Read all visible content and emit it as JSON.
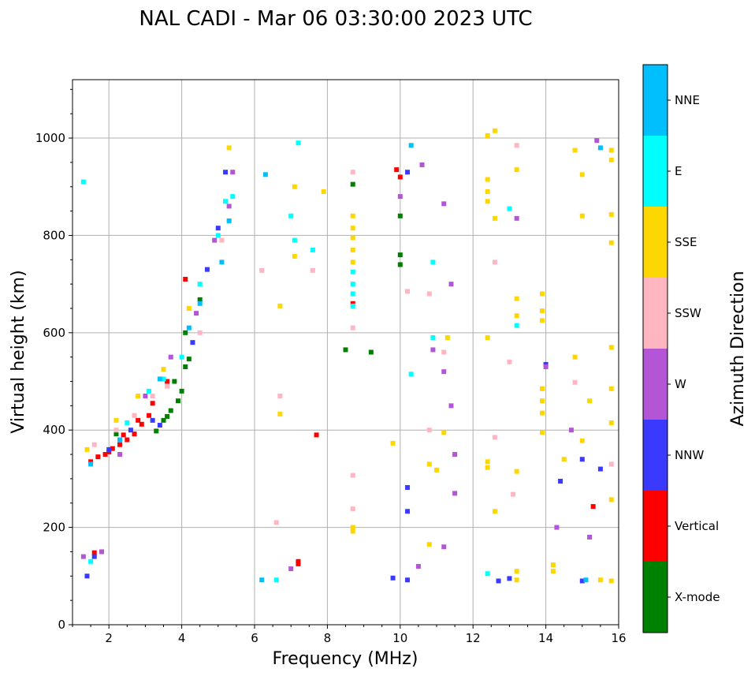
{
  "chart_data": {
    "type": "scatter",
    "title": "NAL CADI - Mar 06 03:30:00 2023 UTC",
    "xlabel": "Frequency (MHz)",
    "ylabel": "Virtual height (km)",
    "xlim": [
      1,
      16
    ],
    "ylim": [
      0,
      1120
    ],
    "xticks": [
      2,
      4,
      6,
      8,
      10,
      12,
      14,
      16
    ],
    "yticks": [
      0,
      200,
      400,
      600,
      800,
      1000
    ],
    "grid": true,
    "colorbar": {
      "label": "Azimuth Direction",
      "categories": [
        {
          "name": "X-mode",
          "color": "#008000"
        },
        {
          "name": "Vertical",
          "color": "#ff0000"
        },
        {
          "name": "NNW",
          "color": "#3a3aff"
        },
        {
          "name": "W",
          "color": "#b455d6"
        },
        {
          "name": "SSW",
          "color": "#ffb6c1"
        },
        {
          "name": "SSE",
          "color": "#ffd700"
        },
        {
          "name": "E",
          "color": "#00ffff"
        },
        {
          "name": "NNE",
          "color": "#00bfff"
        }
      ]
    },
    "series": [
      {
        "name": "X-mode",
        "points": [
          [
            3.6,
            428
          ],
          [
            3.7,
            440
          ],
          [
            3.9,
            460
          ],
          [
            4.0,
            480
          ],
          [
            4.1,
            530
          ],
          [
            4.2,
            546
          ],
          [
            4.5,
            668
          ],
          [
            3.3,
            398
          ],
          [
            3.5,
            420
          ],
          [
            8.5,
            565
          ],
          [
            9.2,
            560
          ],
          [
            8.7,
            905
          ],
          [
            10.0,
            740
          ],
          [
            10.0,
            760
          ],
          [
            10.0,
            840
          ],
          [
            3.8,
            500
          ],
          [
            4.1,
            600
          ],
          [
            2.2,
            392
          ]
        ]
      },
      {
        "name": "Vertical",
        "points": [
          [
            1.5,
            335
          ],
          [
            1.7,
            345
          ],
          [
            1.9,
            350
          ],
          [
            2.1,
            362
          ],
          [
            2.3,
            370
          ],
          [
            2.5,
            380
          ],
          [
            2.7,
            392
          ],
          [
            2.9,
            412
          ],
          [
            3.1,
            430
          ],
          [
            1.6,
            148
          ],
          [
            2.0,
            355
          ],
          [
            2.4,
            390
          ],
          [
            2.8,
            420
          ],
          [
            3.2,
            455
          ],
          [
            3.6,
            500
          ],
          [
            4.1,
            710
          ],
          [
            7.7,
            390
          ],
          [
            8.7,
            660
          ],
          [
            9.9,
            935
          ],
          [
            10.0,
            920
          ],
          [
            15.3,
            243
          ],
          [
            7.2,
            130
          ],
          [
            7.2,
            125
          ]
        ]
      },
      {
        "name": "NNW",
        "points": [
          [
            1.4,
            100
          ],
          [
            1.6,
            140
          ],
          [
            2.0,
            360
          ],
          [
            2.6,
            400
          ],
          [
            3.2,
            420
          ],
          [
            3.4,
            410
          ],
          [
            4.3,
            580
          ],
          [
            4.7,
            730
          ],
          [
            5.2,
            930
          ],
          [
            5.0,
            815
          ],
          [
            10.2,
            930
          ],
          [
            10.2,
            282
          ],
          [
            10.2,
            233
          ],
          [
            9.8,
            96
          ],
          [
            10.2,
            92
          ],
          [
            12.7,
            90
          ],
          [
            13.0,
            95
          ],
          [
            15.0,
            90
          ],
          [
            14.4,
            295
          ],
          [
            14.0,
            535
          ],
          [
            15.0,
            340
          ],
          [
            15.5,
            320
          ]
        ]
      },
      {
        "name": "W",
        "points": [
          [
            1.3,
            140
          ],
          [
            1.8,
            150
          ],
          [
            2.3,
            350
          ],
          [
            3.0,
            470
          ],
          [
            3.7,
            550
          ],
          [
            4.4,
            640
          ],
          [
            4.9,
            790
          ],
          [
            5.3,
            860
          ],
          [
            5.4,
            930
          ],
          [
            10.0,
            880
          ],
          [
            10.6,
            945
          ],
          [
            11.2,
            865
          ],
          [
            11.4,
            700
          ],
          [
            10.9,
            565
          ],
          [
            11.2,
            520
          ],
          [
            11.4,
            450
          ],
          [
            11.5,
            350
          ],
          [
            11.5,
            270
          ],
          [
            11.2,
            160
          ],
          [
            10.5,
            120
          ],
          [
            13.2,
            835
          ],
          [
            14.0,
            530
          ],
          [
            14.7,
            400
          ],
          [
            15.2,
            180
          ],
          [
            15.4,
            995
          ],
          [
            14.3,
            200
          ],
          [
            7.0,
            115
          ]
        ]
      },
      {
        "name": "SSW",
        "points": [
          [
            1.6,
            370
          ],
          [
            2.2,
            400
          ],
          [
            2.7,
            430
          ],
          [
            3.2,
            470
          ],
          [
            3.6,
            490
          ],
          [
            4.5,
            600
          ],
          [
            5.1,
            790
          ],
          [
            6.2,
            728
          ],
          [
            6.7,
            470
          ],
          [
            6.6,
            210
          ],
          [
            7.6,
            728
          ],
          [
            8.7,
            930
          ],
          [
            8.7,
            610
          ],
          [
            8.7,
            307
          ],
          [
            8.7,
            238
          ],
          [
            10.2,
            685
          ],
          [
            10.8,
            680
          ],
          [
            10.8,
            400
          ],
          [
            11.2,
            560
          ],
          [
            12.6,
            745
          ],
          [
            12.6,
            385
          ],
          [
            13.0,
            540
          ],
          [
            13.1,
            268
          ],
          [
            13.2,
            985
          ],
          [
            14.8,
            498
          ],
          [
            15.8,
            330
          ]
        ]
      },
      {
        "name": "SSE",
        "points": [
          [
            1.4,
            360
          ],
          [
            2.2,
            420
          ],
          [
            2.8,
            470
          ],
          [
            3.5,
            525
          ],
          [
            4.2,
            650
          ],
          [
            5.3,
            980
          ],
          [
            6.7,
            655
          ],
          [
            6.7,
            433
          ],
          [
            7.1,
            900
          ],
          [
            7.1,
            757
          ],
          [
            7.9,
            890
          ],
          [
            8.7,
            840
          ],
          [
            8.7,
            815
          ],
          [
            8.7,
            795
          ],
          [
            8.7,
            770
          ],
          [
            8.7,
            745
          ],
          [
            8.7,
            200
          ],
          [
            8.7,
            192
          ],
          [
            9.8,
            373
          ],
          [
            10.8,
            330
          ],
          [
            10.8,
            165
          ],
          [
            11.0,
            318
          ],
          [
            11.2,
            395
          ],
          [
            11.3,
            590
          ],
          [
            12.4,
            1005
          ],
          [
            12.6,
            1015
          ],
          [
            12.4,
            890
          ],
          [
            12.4,
            915
          ],
          [
            12.4,
            870
          ],
          [
            12.6,
            835
          ],
          [
            12.4,
            590
          ],
          [
            12.4,
            335
          ],
          [
            12.4,
            323
          ],
          [
            12.6,
            233
          ],
          [
            13.2,
            670
          ],
          [
            13.2,
            935
          ],
          [
            13.2,
            635
          ],
          [
            13.2,
            315
          ],
          [
            13.2,
            110
          ],
          [
            13.2,
            92
          ],
          [
            13.9,
            680
          ],
          [
            13.9,
            645
          ],
          [
            13.9,
            625
          ],
          [
            13.9,
            485
          ],
          [
            13.9,
            460
          ],
          [
            13.9,
            435
          ],
          [
            13.9,
            395
          ],
          [
            14.2,
            110
          ],
          [
            14.2,
            123
          ],
          [
            14.5,
            340
          ],
          [
            14.8,
            550
          ],
          [
            14.8,
            975
          ],
          [
            15.0,
            925
          ],
          [
            15.0,
            840
          ],
          [
            15.2,
            460
          ],
          [
            15.0,
            378
          ],
          [
            15.5,
            92
          ],
          [
            15.8,
            975
          ],
          [
            15.8,
            955
          ],
          [
            15.8,
            843
          ],
          [
            15.8,
            785
          ],
          [
            15.8,
            570
          ],
          [
            15.8,
            485
          ],
          [
            15.8,
            415
          ],
          [
            15.8,
            257
          ],
          [
            15.8,
            90
          ]
        ]
      },
      {
        "name": "E",
        "points": [
          [
            1.3,
            910
          ],
          [
            1.5,
            130
          ],
          [
            2.5,
            415
          ],
          [
            3.1,
            480
          ],
          [
            3.5,
            505
          ],
          [
            4.0,
            550
          ],
          [
            4.5,
            700
          ],
          [
            5.0,
            800
          ],
          [
            5.2,
            870
          ],
          [
            5.4,
            880
          ],
          [
            7.0,
            840
          ],
          [
            7.1,
            790
          ],
          [
            7.2,
            990
          ],
          [
            8.7,
            725
          ],
          [
            8.7,
            700
          ],
          [
            8.7,
            680
          ],
          [
            8.7,
            655
          ],
          [
            10.3,
            515
          ],
          [
            10.9,
            745
          ],
          [
            10.9,
            590
          ],
          [
            12.4,
            105
          ],
          [
            13.0,
            855
          ],
          [
            13.2,
            615
          ],
          [
            6.6,
            92
          ],
          [
            7.6,
            770
          ]
        ]
      },
      {
        "name": "NNE",
        "points": [
          [
            1.5,
            330
          ],
          [
            2.3,
            380
          ],
          [
            3.4,
            505
          ],
          [
            4.2,
            610
          ],
          [
            4.5,
            660
          ],
          [
            5.1,
            745
          ],
          [
            5.3,
            830
          ],
          [
            10.3,
            985
          ],
          [
            15.1,
            92
          ],
          [
            15.5,
            980
          ],
          [
            6.2,
            92
          ],
          [
            6.3,
            925
          ]
        ]
      }
    ]
  }
}
